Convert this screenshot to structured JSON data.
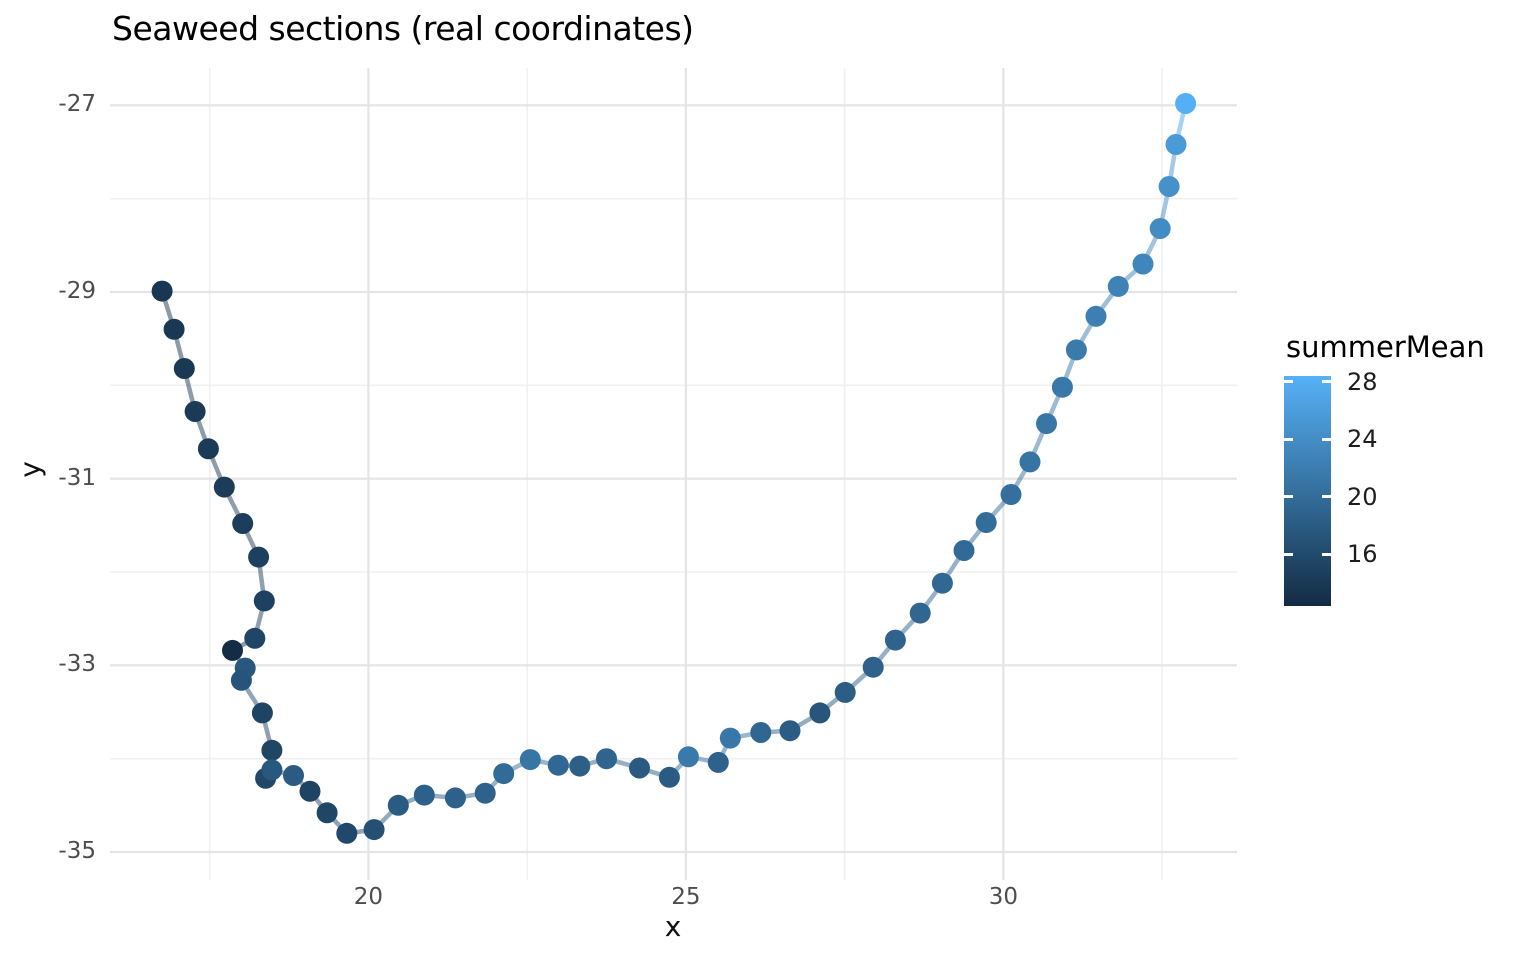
{
  "title": "Seaweed sections (real coordinates)",
  "x_axis": {
    "label": "x",
    "ticks": [
      20,
      25,
      30
    ],
    "minor_ticks": [
      17.5,
      22.5,
      27.5,
      32.5
    ],
    "range": [
      15.93,
      33.68
    ]
  },
  "y_axis": {
    "label": "y",
    "ticks": [
      -27,
      -29,
      -31,
      -33,
      -35
    ],
    "minor_ticks": [
      -28,
      -30,
      -32,
      -34
    ],
    "range": [
      -35.3,
      -26.6
    ]
  },
  "legend": {
    "title": "summerMean",
    "ticks": [
      28,
      24,
      20,
      16
    ],
    "range": [
      12.4,
      28.4
    ],
    "color_low": "#132B43",
    "color_mid": "#35709E",
    "color_high": "#56B1F7"
  },
  "style_colors": {
    "background": "#ffffff",
    "grid_major": "#e4e4e4",
    "grid_minor": "#f0f0f0",
    "axis_text": "#4d4d4d",
    "title_text": "#000000"
  },
  "chart_data": {
    "type": "scatter",
    "title": "Seaweed sections (real coordinates)",
    "xlabel": "x",
    "ylabel": "y",
    "color_label": "summerMean",
    "xlim": [
      15.93,
      33.68
    ],
    "ylim": [
      -35.3,
      -26.6
    ],
    "grid": true,
    "legend_position": "right",
    "series_note": "points connected in order by a semi-transparent path; point color = summerMean",
    "points": [
      [
        16.75,
        -28.99,
        13.8
      ],
      [
        16.94,
        -29.4,
        13.9
      ],
      [
        17.1,
        -29.82,
        14.0
      ],
      [
        17.27,
        -30.28,
        14.1
      ],
      [
        17.48,
        -30.68,
        14.2
      ],
      [
        17.73,
        -31.09,
        14.4
      ],
      [
        18.02,
        -31.48,
        14.6
      ],
      [
        18.27,
        -31.84,
        14.8
      ],
      [
        18.36,
        -32.31,
        15.0
      ],
      [
        18.21,
        -32.71,
        15.4
      ],
      [
        17.86,
        -32.84,
        12.6
      ],
      [
        18.06,
        -33.03,
        17.6
      ],
      [
        18.0,
        -33.16,
        17.2
      ],
      [
        18.33,
        -33.51,
        15.2
      ],
      [
        18.48,
        -33.91,
        15.4
      ],
      [
        18.38,
        -34.21,
        15.6
      ],
      [
        18.48,
        -34.12,
        17.6
      ],
      [
        18.82,
        -34.18,
        18.0
      ],
      [
        19.08,
        -34.35,
        15.2
      ],
      [
        19.35,
        -34.58,
        15.5
      ],
      [
        19.66,
        -34.8,
        15.8
      ],
      [
        20.09,
        -34.76,
        16.6
      ],
      [
        20.47,
        -34.5,
        18.0
      ],
      [
        20.88,
        -34.39,
        18.6
      ],
      [
        21.37,
        -34.42,
        18.6
      ],
      [
        21.84,
        -34.37,
        18.8
      ],
      [
        22.13,
        -34.16,
        19.8
      ],
      [
        22.55,
        -34.01,
        21.0
      ],
      [
        22.99,
        -34.07,
        19.4
      ],
      [
        23.33,
        -34.08,
        18.4
      ],
      [
        23.75,
        -34.0,
        19.0
      ],
      [
        24.27,
        -34.1,
        17.9
      ],
      [
        24.74,
        -34.2,
        18.0
      ],
      [
        25.04,
        -33.98,
        21.6
      ],
      [
        25.51,
        -34.04,
        18.7
      ],
      [
        25.7,
        -33.78,
        21.3
      ],
      [
        26.18,
        -33.72,
        19.3
      ],
      [
        26.64,
        -33.7,
        18.1
      ],
      [
        27.11,
        -33.51,
        17.3
      ],
      [
        27.51,
        -33.29,
        18.2
      ],
      [
        27.95,
        -33.02,
        18.7
      ],
      [
        28.3,
        -32.73,
        18.9
      ],
      [
        28.69,
        -32.44,
        19.2
      ],
      [
        29.04,
        -32.12,
        19.4
      ],
      [
        29.38,
        -31.77,
        19.7
      ],
      [
        29.73,
        -31.47,
        20.0
      ],
      [
        30.12,
        -31.17,
        20.3
      ],
      [
        30.42,
        -30.82,
        20.9
      ],
      [
        30.68,
        -30.41,
        21.1
      ],
      [
        30.93,
        -30.02,
        21.4
      ],
      [
        31.15,
        -29.62,
        21.7
      ],
      [
        31.46,
        -29.26,
        22.2
      ],
      [
        31.81,
        -28.94,
        22.6
      ],
      [
        32.2,
        -28.7,
        23.0
      ],
      [
        32.47,
        -28.32,
        23.7
      ],
      [
        32.61,
        -27.87,
        24.4
      ],
      [
        32.72,
        -27.42,
        25.6
      ],
      [
        32.87,
        -26.98,
        28.2
      ]
    ]
  }
}
